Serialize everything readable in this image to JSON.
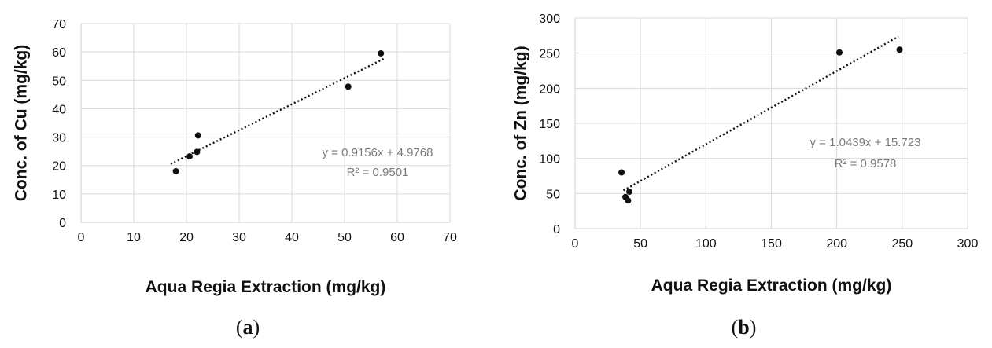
{
  "chart_data": [
    {
      "type": "scatter",
      "panel_label": "a",
      "panel_open": "(",
      "panel_close": ")",
      "xlabel": "Aqua Regia Extraction (mg/kg)",
      "ylabel": "Conc. of Cu (mg/kg)",
      "xlim": [
        0,
        70
      ],
      "ylim": [
        0,
        70
      ],
      "xticks": [
        "0",
        "10",
        "20",
        "30",
        "40",
        "50",
        "60",
        "70"
      ],
      "yticks": [
        "0",
        "10",
        "20",
        "30",
        "40",
        "50",
        "60",
        "70"
      ],
      "grid": true,
      "points": [
        {
          "x": 18,
          "y": 18
        },
        {
          "x": 20.6,
          "y": 23.2
        },
        {
          "x": 22,
          "y": 24.8
        },
        {
          "x": 22.2,
          "y": 30.6
        },
        {
          "x": 50.7,
          "y": 47.8
        },
        {
          "x": 56.9,
          "y": 59.5
        }
      ],
      "trendline": {
        "slope": 0.9156,
        "intercept": 4.9768,
        "x_range": [
          17,
          57.5
        ]
      },
      "equation": "y = 0.9156x + 4.9768",
      "r2": "R² = 0.9501",
      "point_color": "#111111",
      "trend_color": "#111111",
      "equation_color": "#7a7a7a"
    },
    {
      "type": "scatter",
      "panel_label": "b",
      "panel_open": "(",
      "panel_close": ")",
      "xlabel": "Aqua Regia Extraction (mg/kg)",
      "ylabel": "Conc. of Zn (mg/kg)",
      "xlim": [
        0,
        300
      ],
      "ylim": [
        0,
        300
      ],
      "xticks": [
        "0",
        "50",
        "100",
        "150",
        "200",
        "250",
        "300"
      ],
      "yticks": [
        "0",
        "50",
        "100",
        "150",
        "200",
        "250",
        "300"
      ],
      "grid": true,
      "points": [
        {
          "x": 35.5,
          "y": 80
        },
        {
          "x": 38.5,
          "y": 45
        },
        {
          "x": 40.5,
          "y": 40
        },
        {
          "x": 41.5,
          "y": 52.5
        },
        {
          "x": 202,
          "y": 251
        },
        {
          "x": 248,
          "y": 255
        }
      ],
      "trendline": {
        "slope": 1.0439,
        "intercept": 15.723,
        "x_range": [
          37,
          247
        ]
      },
      "equation": "y = 1.0439x + 15.723",
      "r2": "R² = 0.9578",
      "point_color": "#111111",
      "trend_color": "#111111",
      "equation_color": "#7a7a7a"
    }
  ]
}
